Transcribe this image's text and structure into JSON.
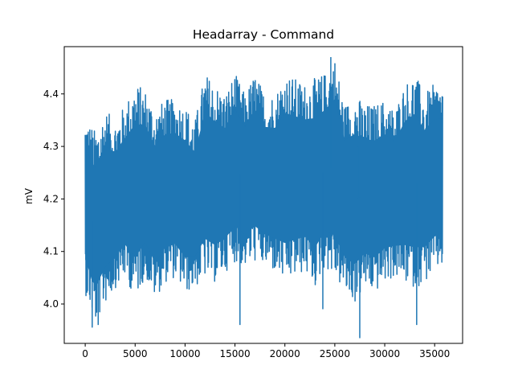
{
  "chart_data": {
    "type": "line",
    "title": "Headarray - Command",
    "xlabel": "",
    "ylabel": "mV",
    "xlim": [
      -2100,
      37800
    ],
    "ylim": [
      3.925,
      4.49
    ],
    "x_ticks": [
      0,
      5000,
      10000,
      15000,
      20000,
      25000,
      30000,
      35000
    ],
    "x_tick_labels": [
      "0",
      "5000",
      "10000",
      "15000",
      "20000",
      "25000",
      "30000",
      "35000"
    ],
    "y_ticks": [
      4.0,
      4.1,
      4.2,
      4.3,
      4.4
    ],
    "y_tick_labels": [
      "4.0",
      "4.1",
      "4.2",
      "4.3",
      "4.4"
    ],
    "grid": false,
    "series": [
      {
        "color": "#1f77b4",
        "x_range": [
          0,
          35800
        ],
        "description_of_values": "dense oscillating signal between about 3.94 and 4.47 mV",
        "envelope": {
          "x": [
            0,
            1000,
            2000,
            3000,
            4000,
            5000,
            6000,
            7000,
            8000,
            9000,
            10000,
            11000,
            12000,
            13000,
            14000,
            15000,
            16000,
            17000,
            18000,
            19000,
            20000,
            21000,
            22000,
            23000,
            24000,
            25000,
            26000,
            27000,
            28000,
            29000,
            30000,
            31000,
            32000,
            33000,
            34000,
            35000,
            35800
          ],
          "upper": [
            4.36,
            4.33,
            4.37,
            4.35,
            4.38,
            4.42,
            4.41,
            4.37,
            4.39,
            4.39,
            4.38,
            4.35,
            4.44,
            4.42,
            4.4,
            4.44,
            4.4,
            4.44,
            4.4,
            4.4,
            4.44,
            4.43,
            4.42,
            4.43,
            4.44,
            4.47,
            4.38,
            4.4,
            4.38,
            4.38,
            4.39,
            4.37,
            4.42,
            4.44,
            4.4,
            4.42,
            4.42
          ],
          "lower": [
            4.02,
            3.96,
            4.0,
            4.03,
            4.05,
            4.01,
            4.05,
            4.01,
            4.04,
            4.05,
            4.02,
            4.03,
            4.05,
            4.04,
            4.06,
            4.08,
            4.07,
            4.08,
            4.07,
            4.06,
            4.04,
            4.05,
            4.06,
            4.03,
            4.07,
            4.05,
            4.02,
            4.0,
            4.03,
            4.02,
            4.04,
            4.05,
            4.04,
            4.03,
            4.04,
            4.06,
            4.07
          ]
        },
        "spikes": [
          {
            "x": 700,
            "y": 3.955
          },
          {
            "x": 1300,
            "y": 3.96
          },
          {
            "x": 15500,
            "y": 3.96
          },
          {
            "x": 23800,
            "y": 3.99
          },
          {
            "x": 27500,
            "y": 3.935
          },
          {
            "x": 33200,
            "y": 3.96
          },
          {
            "x": 24600,
            "y": 4.47
          },
          {
            "x": 27300,
            "y": 4.3
          }
        ]
      }
    ]
  }
}
